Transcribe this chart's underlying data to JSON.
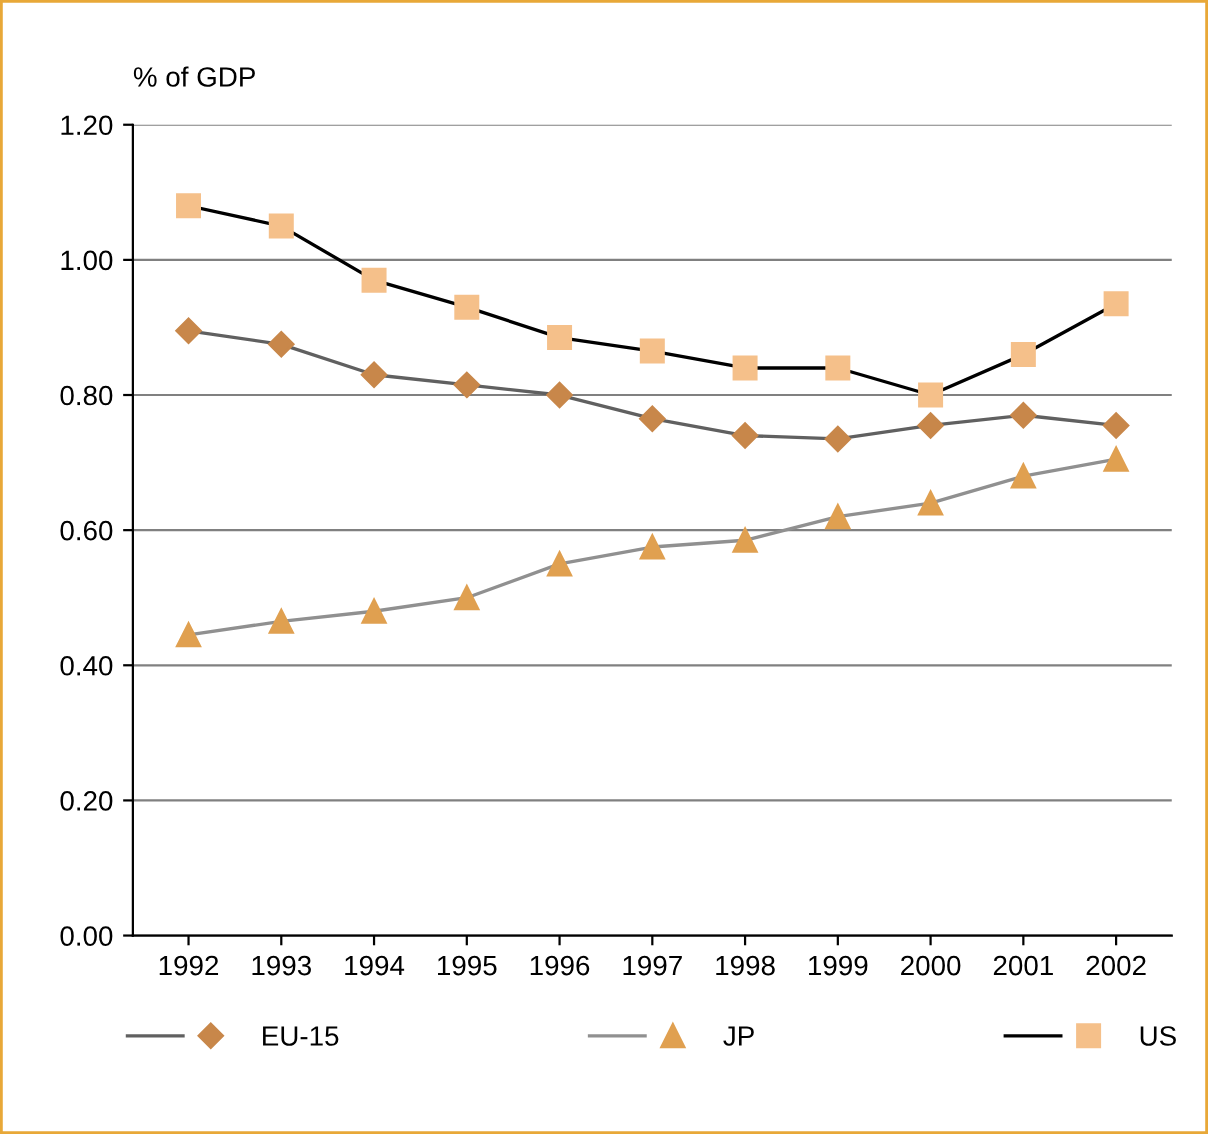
{
  "chart_data": {
    "type": "line",
    "ylabel": "% of GDP",
    "categories": [
      "1992",
      "1993",
      "1994",
      "1995",
      "1996",
      "1997",
      "1998",
      "1999",
      "2000",
      "2001",
      "2002"
    ],
    "series": [
      {
        "name": "EU-15",
        "color": "#c8874a",
        "marker": "diamond",
        "values": [
          0.895,
          0.875,
          0.83,
          0.815,
          0.8,
          0.765,
          0.74,
          0.735,
          0.755,
          0.77,
          0.755
        ]
      },
      {
        "name": "JP",
        "color": "#e0a050",
        "marker": "triangle",
        "values": [
          0.445,
          0.465,
          0.48,
          0.5,
          0.55,
          0.575,
          0.585,
          0.62,
          0.64,
          0.68,
          0.705
        ]
      },
      {
        "name": "US",
        "color": "#f5c08a",
        "marker": "square",
        "values": [
          1.08,
          1.05,
          0.97,
          0.93,
          0.885,
          0.865,
          0.84,
          0.84,
          0.8,
          0.86,
          0.935
        ]
      }
    ],
    "ylim": [
      0,
      1.2
    ],
    "yticks": [
      {
        "value": 0,
        "label": "0.00"
      },
      {
        "value": 0.2,
        "label": "0.20"
      },
      {
        "value": 0.4,
        "label": "0.40"
      },
      {
        "value": 0.6,
        "label": "0.60"
      },
      {
        "value": 0.8,
        "label": "0.80"
      },
      {
        "value": 1.0,
        "label": "1.00"
      },
      {
        "value": 1.2,
        "label": "1.20"
      }
    ],
    "grid": "y",
    "legend": "bottom",
    "line_style": "solid"
  }
}
